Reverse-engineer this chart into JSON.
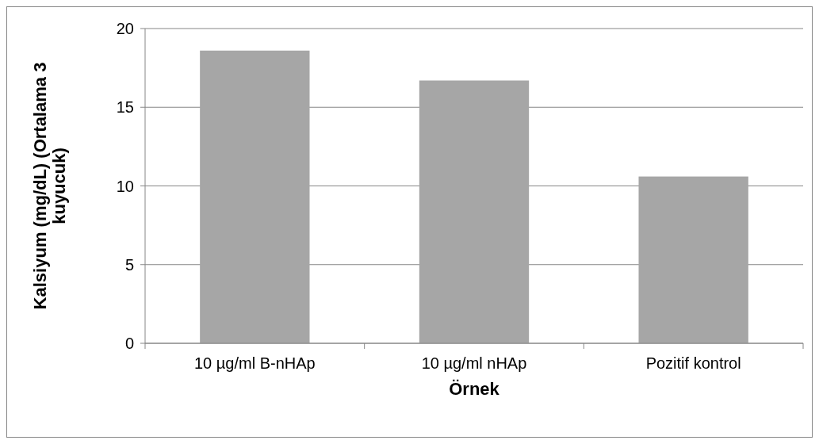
{
  "chart_data": {
    "type": "bar",
    "xlabel": "Örnek",
    "ylabel": "Kalsiyum (mg/dL) (Ortalama 3 kuyucuk)",
    "categories": [
      "10 µg/ml B-nHAp",
      "10 µg/ml nHAp",
      "Pozitif kontrol"
    ],
    "values": [
      18.6,
      16.7,
      10.6
    ],
    "color": "#a6a6a6",
    "ylim": [
      0,
      20
    ],
    "yticks": [
      0,
      5,
      10,
      15,
      20
    ],
    "grid": "y"
  }
}
